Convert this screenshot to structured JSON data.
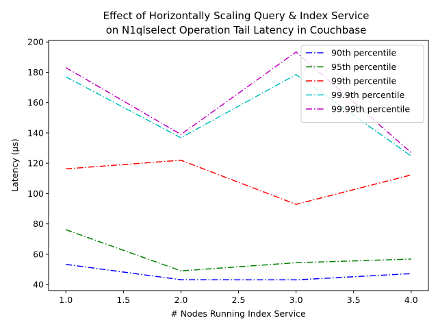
{
  "chart_data": {
    "type": "line",
    "title": [
      "Effect of Horizontally Scaling Query & Index Service",
      "on N1qlselect Operation Tail Latency in Couchbase"
    ],
    "xlabel": "# Nodes Running Index Service",
    "ylabel": "Latency (µs)",
    "xlim": [
      0.85,
      4.15
    ],
    "ylim": [
      36,
      201
    ],
    "x_ticks": [
      1.0,
      1.5,
      2.0,
      2.5,
      3.0,
      3.5,
      4.0
    ],
    "x_tick_labels": [
      "1.0",
      "1.5",
      "2.0",
      "2.5",
      "3.0",
      "3.5",
      "4.0"
    ],
    "y_ticks": [
      40,
      60,
      80,
      100,
      120,
      140,
      160,
      180,
      200
    ],
    "y_tick_labels": [
      "40",
      "60",
      "80",
      "100",
      "120",
      "140",
      "160",
      "180",
      "200"
    ],
    "x": [
      1,
      2,
      3,
      4
    ],
    "legend_position": "top-right",
    "grid": false,
    "series": [
      {
        "name": "90th percentile",
        "color": "#0000ff",
        "values": [
          53.3,
          43.2,
          43.1,
          47.2
        ]
      },
      {
        "name": "95th percentile",
        "color": "#008000",
        "values": [
          76.2,
          49.0,
          54.4,
          56.8
        ]
      },
      {
        "name": "99th percentile",
        "color": "#ff0000",
        "values": [
          116.3,
          122.0,
          92.9,
          112.3
        ]
      },
      {
        "name": "99.9th percentile",
        "color": "#00bfbf",
        "values": [
          177.0,
          136.8,
          178.5,
          124.8
        ]
      },
      {
        "name": "99.99th percentile",
        "color": "#bf00bf",
        "values": [
          183.1,
          139.0,
          193.4,
          127.0
        ]
      }
    ]
  }
}
